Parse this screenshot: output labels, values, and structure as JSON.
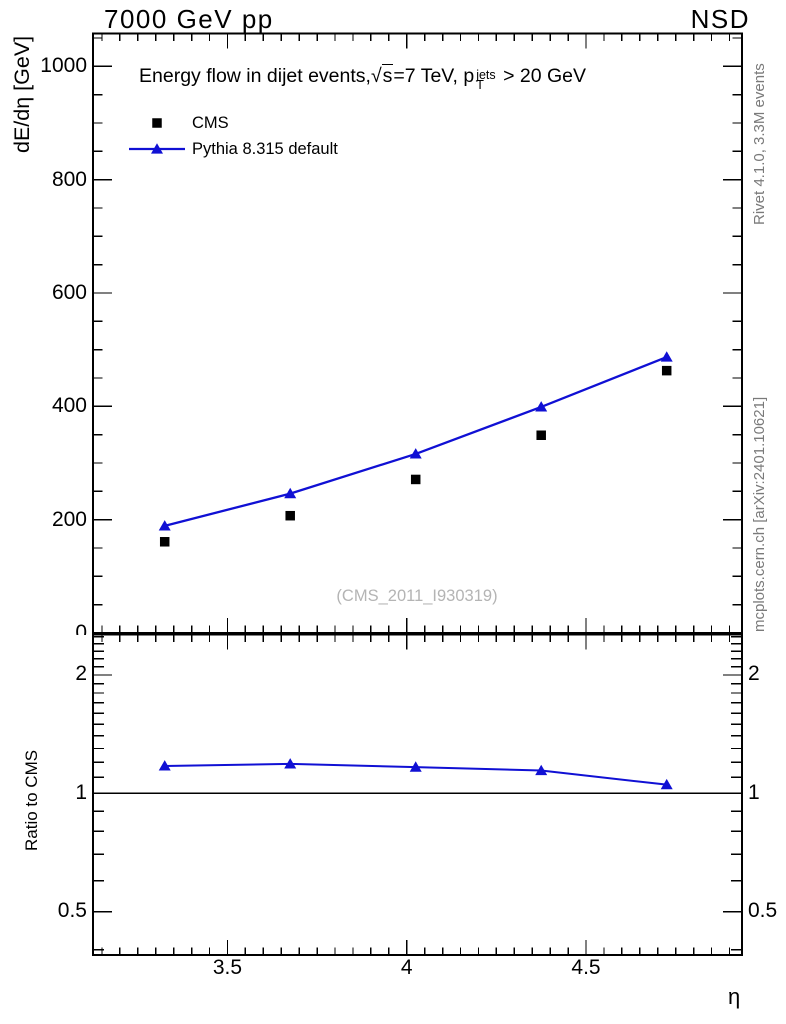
{
  "header": {
    "left": "7000 GeV pp",
    "right": "NSD"
  },
  "credits": {
    "top": "Rivet 4.1.0,  3.3M events",
    "bottom": "mcplots.cern.ch [arXiv:2401.10621]",
    "color": "#7a7a7a"
  },
  "watermark": {
    "text": "(CMS_2011_I930319)",
    "color": "#b4b4b4"
  },
  "main_title": {
    "pre": "Energy flow in dijet events,",
    "sqrt_symbol": "√",
    "sqrt_arg": "s",
    "mid": "=7 TeV, p",
    "sup": "jets",
    "sub": "T",
    "post": " > 20 GeV"
  },
  "axis_titles": {
    "y_main": "dE/dη [GeV]",
    "y_ratio": "Ratio to CMS",
    "x": "η"
  },
  "chart_data": {
    "type": "line",
    "title": "Energy flow in dijet events, √s=7 TeV, pT^jets > 20 GeV",
    "xlabel": "η",
    "ylabel": "dE/dη [GeV]",
    "ratio_label": "Ratio to CMS",
    "beam": "7000 GeV pp",
    "event_class": "NSD",
    "x": [
      3.325,
      3.675,
      4.025,
      4.375,
      4.725
    ],
    "series": [
      {
        "name": "CMS",
        "marker": "square",
        "color": "#000000",
        "line": false,
        "values": [
          161,
          207,
          271,
          349,
          463
        ]
      },
      {
        "name": "Pythia 8.315 default",
        "marker": "triangle",
        "color": "#1010d4",
        "line": true,
        "values": [
          189,
          246,
          316,
          399,
          487
        ]
      }
    ],
    "ratio_values": [
      1.174,
      1.188,
      1.166,
      1.143,
      1.052
    ],
    "axes": {
      "x": {
        "min": 3.125,
        "max": 4.935,
        "majors": [
          3.5,
          4,
          4.5
        ],
        "major_labels": [
          "3.5",
          "4",
          "4.5"
        ],
        "minor_start": 3.15,
        "minor_step": 0.05,
        "minor_end": 4.9
      },
      "y_main": {
        "min": 0,
        "max": 1058,
        "scale": "linear",
        "majors": [
          0,
          200,
          400,
          600,
          800,
          1000
        ],
        "major_labels": [
          "0",
          "200",
          "400",
          "600",
          "800",
          "1000"
        ],
        "minor_step": 50
      },
      "y_ratio": {
        "min": 0.388,
        "max": 2.535,
        "scale": "log",
        "majors": [
          0.5,
          1,
          2
        ],
        "major_labels": [
          "0.5",
          "1",
          "2"
        ],
        "minors": [
          0.4,
          0.6,
          0.7,
          0.8,
          0.9,
          1.1,
          1.2,
          1.3,
          1.4,
          1.5,
          1.6,
          1.7,
          1.8,
          1.9,
          2.1,
          2.2,
          2.3,
          2.4,
          2.5
        ],
        "reference": 1
      }
    },
    "legend_position": "top-left",
    "grid": false
  }
}
